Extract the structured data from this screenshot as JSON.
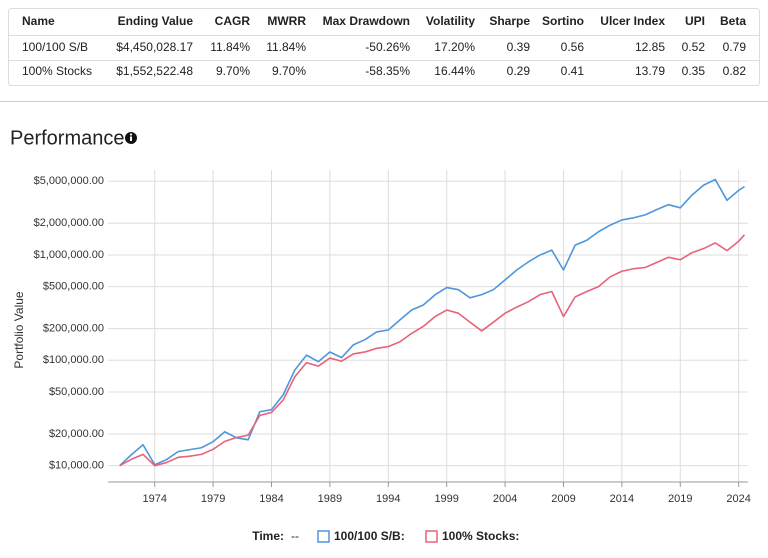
{
  "table": {
    "headers": [
      "Name",
      "Ending Value",
      "CAGR",
      "MWRR",
      "Max Drawdown",
      "Volatility",
      "Sharpe",
      "Sortino",
      "Ulcer Index",
      "UPI",
      "Beta"
    ],
    "rows": [
      [
        "100/100 S/B",
        "$4,450,028.17",
        "11.84%",
        "11.84%",
        "-50.26%",
        "17.20%",
        "0.39",
        "0.56",
        "12.85",
        "0.52",
        "0.79"
      ],
      [
        "100% Stocks",
        "$1,552,522.48",
        "9.70%",
        "9.70%",
        "-58.35%",
        "16.44%",
        "0.29",
        "0.41",
        "13.79",
        "0.35",
        "0.82"
      ]
    ]
  },
  "section_title": "Performance",
  "chart_data": {
    "type": "line",
    "ylabel": "Portfolio Value",
    "log_scale": true,
    "grid": true,
    "x": [
      1971,
      1972,
      1973,
      1974,
      1975,
      1976,
      1977,
      1978,
      1979,
      1980,
      1981,
      1982,
      1983,
      1984,
      1985,
      1986,
      1987,
      1988,
      1989,
      1990,
      1991,
      1992,
      1993,
      1994,
      1995,
      1996,
      1997,
      1998,
      1999,
      2000,
      2001,
      2002,
      2003,
      2004,
      2005,
      2006,
      2007,
      2008,
      2009,
      2010,
      2011,
      2012,
      2013,
      2014,
      2015,
      2016,
      2017,
      2018,
      2019,
      2020,
      2021,
      2022,
      2023,
      2024,
      2024.5
    ],
    "xlim": [
      1970,
      2024.8
    ],
    "xticks": [
      1974,
      1979,
      1984,
      1989,
      1994,
      1999,
      2004,
      2009,
      2014,
      2019,
      2024
    ],
    "ylim": [
      7000,
      6400000
    ],
    "yticks": [
      {
        "value": 10000,
        "label": "$10,000.00"
      },
      {
        "value": 20000,
        "label": "$20,000.00"
      },
      {
        "value": 50000,
        "label": "$50,000.00"
      },
      {
        "value": 100000,
        "label": "$100,000.00"
      },
      {
        "value": 200000,
        "label": "$200,000.00"
      },
      {
        "value": 500000,
        "label": "$500,000.00"
      },
      {
        "value": 1000000,
        "label": "$1,000,000.00"
      },
      {
        "value": 2000000,
        "label": "$2,000,000.00"
      },
      {
        "value": 5000000,
        "label": "$5,000,000.00"
      }
    ],
    "legend": {
      "time_label": "Time:",
      "time_value": "--"
    },
    "series": [
      {
        "name": "100/100 S/B:",
        "color": "#4f96dc",
        "values": [
          10000,
          12700,
          15800,
          10200,
          11400,
          13600,
          14200,
          14800,
          16900,
          21000,
          18400,
          17600,
          32500,
          34000,
          47000,
          81000,
          112000,
          97000,
          120000,
          106000,
          140000,
          157000,
          186000,
          194000,
          242000,
          300000,
          335000,
          418000,
          490000,
          468000,
          392000,
          420000,
          468000,
          580000,
          720000,
          860000,
          1000000,
          1110000,
          720000,
          1240000,
          1380000,
          1660000,
          1920000,
          2150000,
          2250000,
          2400000,
          2700000,
          3000000,
          2800000,
          3700000,
          4600000,
          5200000,
          3300000,
          4100000,
          4450028
        ]
      },
      {
        "name": "100% Stocks:",
        "color": "#e8637a",
        "values": [
          10000,
          11500,
          12800,
          10000,
          10700,
          12000,
          12300,
          12800,
          14300,
          17000,
          18500,
          19500,
          30000,
          32000,
          42000,
          70000,
          95000,
          88000,
          105000,
          98000,
          115000,
          120000,
          130000,
          135000,
          150000,
          180000,
          210000,
          260000,
          300000,
          280000,
          230000,
          190000,
          230000,
          280000,
          320000,
          360000,
          420000,
          450000,
          260000,
          400000,
          450000,
          500000,
          620000,
          700000,
          740000,
          760000,
          850000,
          950000,
          900000,
          1050000,
          1150000,
          1300000,
          1100000,
          1350000,
          1552522
        ]
      }
    ]
  }
}
